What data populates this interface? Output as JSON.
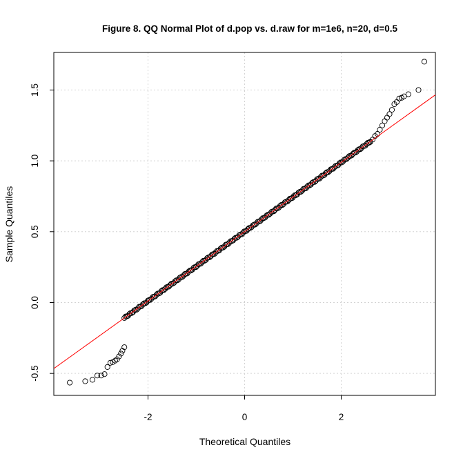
{
  "chart_data": {
    "type": "scatter",
    "subtype": "qq-normal",
    "title": "Figure 8. QQ Normal Plot of d.pop vs. d.raw for m=1e6, n=20, d=0.5",
    "xlabel": "Theoretical Quantiles",
    "ylabel": "Sample Quantiles",
    "xlim": [
      -3.95,
      3.95
    ],
    "ylim": [
      -0.655,
      1.765
    ],
    "x_ticks": [
      -2,
      0,
      2
    ],
    "x_tick_labels": [
      "-2",
      "0",
      "2"
    ],
    "y_ticks": [
      -0.5,
      0.0,
      0.5,
      1.0,
      1.5
    ],
    "y_tick_labels": [
      "-0.5",
      "0.0",
      "0.5",
      "1.0",
      "1.5"
    ],
    "grid": true,
    "reference_line": {
      "intercept": 0.5,
      "slope": 0.2445,
      "color": "#ff0000"
    },
    "series": [
      {
        "marker": "open-circle",
        "color": "#000000",
        "points": [
          [
            -3.62,
            -0.565
          ],
          [
            -3.3,
            -0.555
          ],
          [
            -3.15,
            -0.545
          ],
          [
            -3.05,
            -0.515
          ],
          [
            -2.97,
            -0.515
          ],
          [
            -2.9,
            -0.505
          ],
          [
            -2.84,
            -0.455
          ],
          [
            -2.78,
            -0.425
          ],
          [
            -2.73,
            -0.42
          ],
          [
            -2.68,
            -0.41
          ],
          [
            -2.64,
            -0.4
          ],
          [
            -2.6,
            -0.38
          ],
          [
            -2.56,
            -0.36
          ],
          [
            -2.53,
            -0.34
          ],
          [
            -2.49,
            -0.315
          ],
          [
            2.6,
            1.135
          ],
          [
            2.65,
            1.15
          ],
          [
            2.7,
            1.175
          ],
          [
            2.75,
            1.19
          ],
          [
            2.8,
            1.22
          ],
          [
            2.85,
            1.25
          ],
          [
            2.9,
            1.28
          ],
          [
            2.95,
            1.305
          ],
          [
            3.0,
            1.33
          ],
          [
            3.05,
            1.36
          ],
          [
            3.1,
            1.4
          ],
          [
            3.15,
            1.415
          ],
          [
            3.2,
            1.44
          ],
          [
            3.25,
            1.445
          ],
          [
            3.3,
            1.455
          ],
          [
            3.39,
            1.47
          ],
          [
            3.6,
            1.5
          ],
          [
            3.72,
            1.7
          ]
        ],
        "dense_band": {
          "x_range": [
            -2.49,
            2.6
          ],
          "count": 200
        }
      }
    ]
  }
}
